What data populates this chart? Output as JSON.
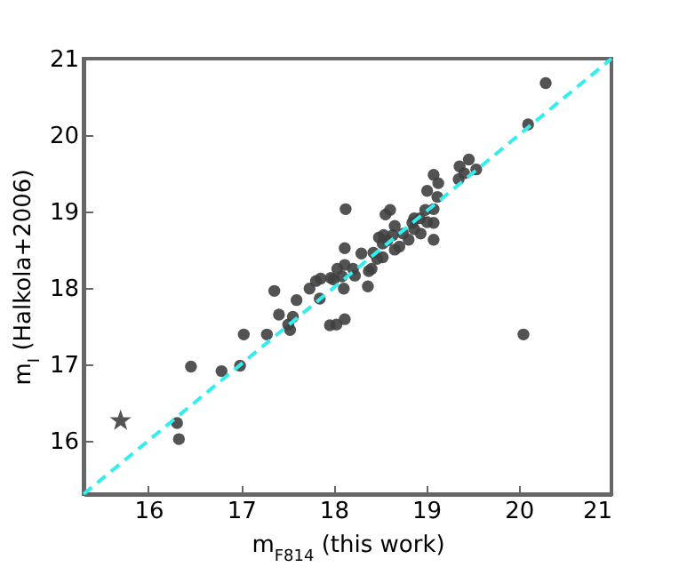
{
  "chart_data": {
    "type": "scatter",
    "xlabel": "m$_{F814}$ (this work)",
    "ylabel": "m$_{I}$ (Halkola+2006)",
    "xlim": [
      15.3,
      21
    ],
    "ylim": [
      15.3,
      21
    ],
    "xticks": [
      16,
      17,
      18,
      19,
      20,
      21
    ],
    "yticks": [
      16,
      17,
      18,
      19,
      20,
      21
    ],
    "grid": false,
    "series": [
      {
        "color": "#404040",
        "marker": "circle",
        "x": [
          20.29,
          20.1,
          19.54,
          19.46,
          19.36,
          19.41,
          19.35,
          19.08,
          19.13,
          19.01,
          19.12,
          19.08,
          18.99,
          19.08,
          18.93,
          18.87,
          18.85,
          19.01,
          19.08,
          18.94,
          18.87,
          18.81,
          18.75,
          18.66,
          18.61,
          18.56,
          18.13,
          18.49,
          18.54,
          18.53,
          18.58,
          18.64,
          18.71,
          18.66,
          18.12,
          18.3,
          18.43,
          18.53,
          18.47,
          18.12,
          18.04,
          18.21,
          18.38,
          18.41,
          17.97,
          18.0,
          18.09,
          18.23,
          17.81,
          17.86,
          17.74,
          18.11,
          18.37,
          17.36,
          17.6,
          17.85,
          17.41,
          17.56,
          17.51,
          17.53,
          17.96,
          18.03,
          18.12,
          17.03,
          17.28,
          20.05,
          16.46,
          16.79,
          16.99,
          16.31,
          16.33
        ],
        "values": [
          20.68,
          20.14,
          19.55,
          19.68,
          19.59,
          19.5,
          19.42,
          19.48,
          19.37,
          19.27,
          19.19,
          19.03,
          19.02,
          18.85,
          18.91,
          18.91,
          18.85,
          18.86,
          18.63,
          18.71,
          18.77,
          18.63,
          18.71,
          18.81,
          19.02,
          18.96,
          19.03,
          18.66,
          18.69,
          18.58,
          18.62,
          18.69,
          18.54,
          18.5,
          18.52,
          18.45,
          18.46,
          18.4,
          18.38,
          18.3,
          18.25,
          18.25,
          18.22,
          18.25,
          18.13,
          18.11,
          18.15,
          18.16,
          18.09,
          18.12,
          17.99,
          17.99,
          18.02,
          17.96,
          17.84,
          17.86,
          17.65,
          17.62,
          17.52,
          17.45,
          17.51,
          17.52,
          17.59,
          17.39,
          17.39,
          17.39,
          16.97,
          16.91,
          16.98,
          16.23,
          16.02
        ]
      },
      {
        "color": "#404040",
        "marker": "star",
        "x": [
          15.7
        ],
        "values": [
          16.26
        ]
      },
      {
        "type": "line",
        "color": "#33eeee",
        "line_style": "dashed",
        "marker": "none",
        "x": [
          15.3,
          21
        ],
        "values": [
          15.3,
          21
        ]
      }
    ]
  }
}
